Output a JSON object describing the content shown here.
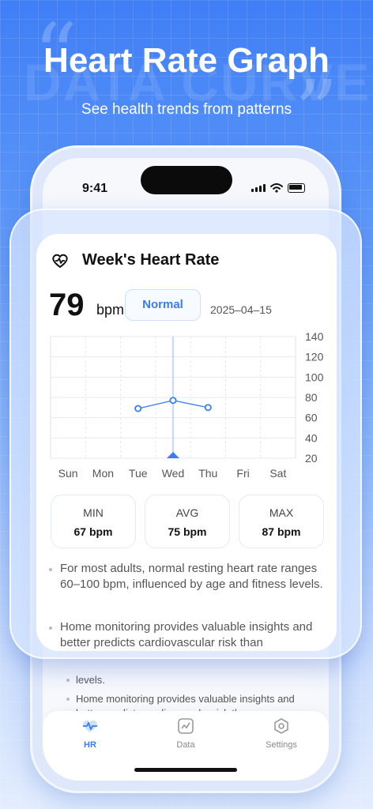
{
  "promo": {
    "title": "Heart Rate Graph",
    "subtitle": "See health trends from patterns",
    "watermark": "DATA CURVE"
  },
  "status_bar": {
    "time": "9:41"
  },
  "card": {
    "title": "Week's Heart Rate",
    "bpm_value": "79",
    "bpm_unit": "bpm",
    "status_label": "Normal",
    "date": "2025–04–15"
  },
  "chart_data": {
    "type": "line",
    "categories": [
      "Sun",
      "Mon",
      "Tue",
      "Wed",
      "Thu",
      "Fri",
      "Sat"
    ],
    "series": [
      {
        "values": [
          null,
          null,
          69,
          77,
          70,
          null,
          null
        ]
      }
    ],
    "yticks": [
      140,
      120,
      100,
      80,
      60,
      40,
      20
    ],
    "ylim": [
      20,
      140
    ],
    "selected_category": "Wed",
    "grid": true,
    "line_color": "#3b7cf5"
  },
  "stats": [
    {
      "label": "MIN",
      "value": "67 bpm"
    },
    {
      "label": "AVG",
      "value": "75 bpm"
    },
    {
      "label": "MAX",
      "value": "87 bpm"
    }
  ],
  "notes": [
    "For most adults, normal resting heart rate ranges 60–100 bpm, influenced by age and fitness levels.",
    "Home monitoring provides valuable insights and better predicts cardiovascular risk than"
  ],
  "back_screen": {
    "text_1": "levels.",
    "text_2": "Home monitoring provides valuable insights and better predicts cardiovascular risk than"
  },
  "tabs": [
    {
      "label": "HR",
      "icon": "heart-monitor-icon",
      "active": true
    },
    {
      "label": "Data",
      "icon": "chart-icon",
      "active": false
    },
    {
      "label": "Settings",
      "icon": "hexagon-gear-icon",
      "active": false
    }
  ],
  "colors": {
    "accent": "#3b7cf5",
    "background_top": "#3f7ef6"
  }
}
